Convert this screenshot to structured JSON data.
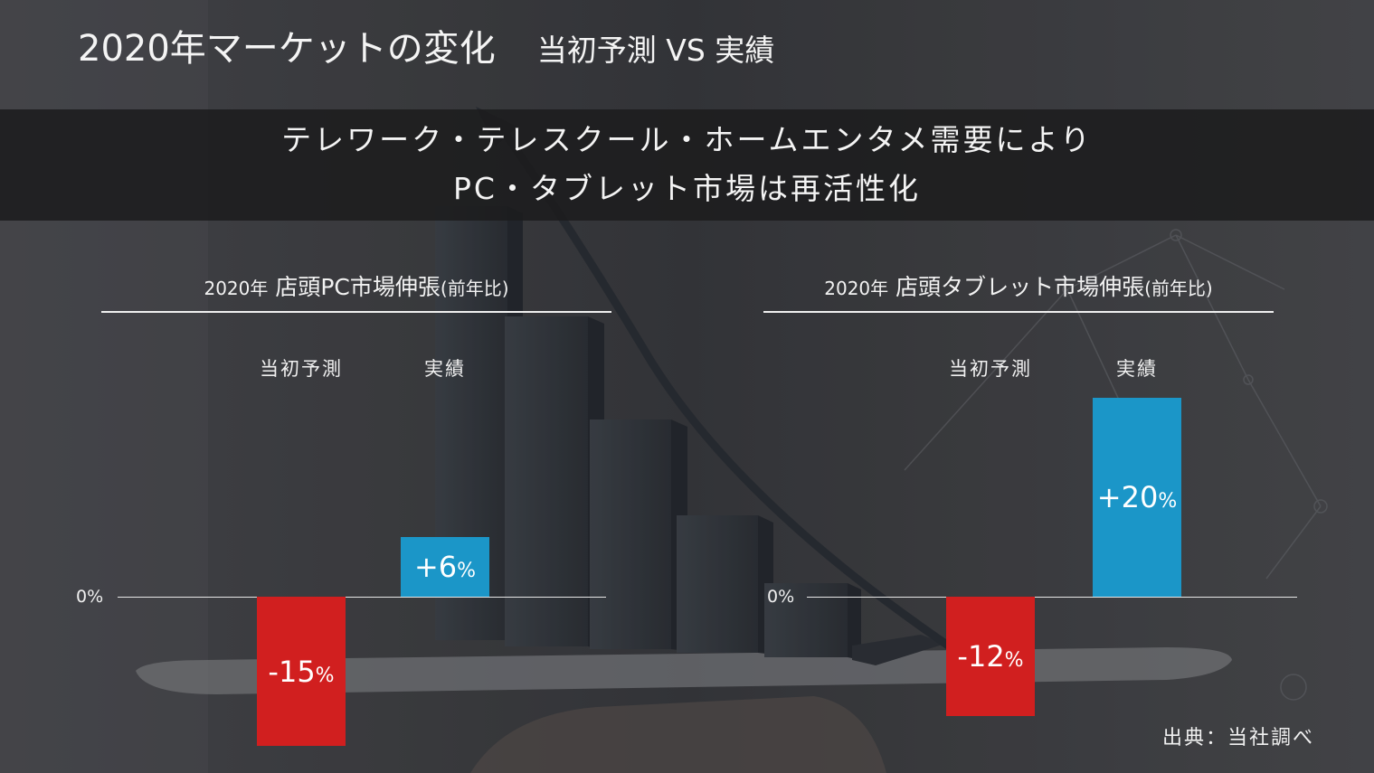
{
  "slide": {
    "title": "2020年マーケットの変化",
    "subtitle": "当初予測 VS 実績",
    "banner": {
      "line1": "テレワーク・テレスクール・ホームエンタメ需要により",
      "line2": "PC・タブレット市場は再活性化"
    },
    "source": "出典：当社調べ"
  },
  "colors": {
    "negative": "#d11f1f",
    "positive": "#1b96c8",
    "background": "#3a3b3e"
  },
  "chart_data": [
    {
      "type": "bar",
      "title_year": "2020年",
      "title_main": "店頭PC市場伸張",
      "title_suffix": "(前年比)",
      "zero_label": "0%",
      "categories": [
        "当初予測",
        "実績"
      ],
      "values": [
        -15,
        6
      ],
      "value_labels": [
        {
          "num": "-15",
          "unit": "%"
        },
        {
          "num": "+6",
          "unit": "%"
        }
      ]
    },
    {
      "type": "bar",
      "title_year": "2020年",
      "title_main": "店頭タブレット市場伸張",
      "title_suffix": "(前年比)",
      "zero_label": "0%",
      "categories": [
        "当初予測",
        "実績"
      ],
      "values": [
        -12,
        20
      ],
      "value_labels": [
        {
          "num": "-12",
          "unit": "%"
        },
        {
          "num": "+20",
          "unit": "%"
        }
      ]
    }
  ]
}
